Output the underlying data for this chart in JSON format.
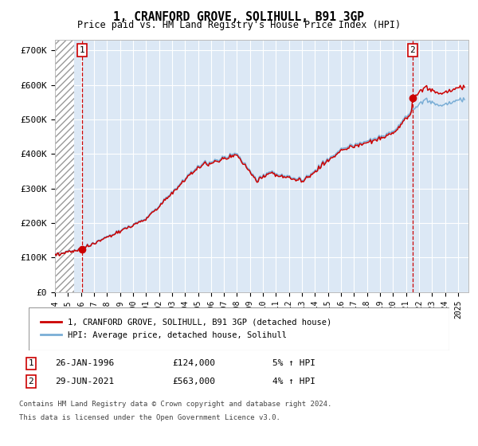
{
  "title": "1, CRANFORD GROVE, SOLIHULL, B91 3GP",
  "subtitle": "Price paid vs. HM Land Registry's House Price Index (HPI)",
  "ylabel_ticks": [
    "£0",
    "£100K",
    "£200K",
    "£300K",
    "£400K",
    "£500K",
    "£600K",
    "£700K"
  ],
  "ytick_values": [
    0,
    100000,
    200000,
    300000,
    400000,
    500000,
    600000,
    700000
  ],
  "ylim": [
    0,
    730000
  ],
  "xlim_start": 1994.0,
  "xlim_end": 2025.8,
  "hatch_end": 1995.5,
  "transaction1_year": 1996.07,
  "transaction1_price": 124000,
  "transaction2_year": 2021.49,
  "transaction2_price": 563000,
  "line_color_red": "#cc0000",
  "line_color_blue": "#7aaed6",
  "plot_bg": "#dce8f5",
  "grid_color": "#ffffff",
  "legend_label_red": "1, CRANFORD GROVE, SOLIHULL, B91 3GP (detached house)",
  "legend_label_blue": "HPI: Average price, detached house, Solihull",
  "footnote1": "Contains HM Land Registry data © Crown copyright and database right 2024.",
  "footnote2": "This data is licensed under the Open Government Licence v3.0.",
  "xtick_years": [
    1994,
    1995,
    1996,
    1997,
    1998,
    1999,
    2000,
    2001,
    2002,
    2003,
    2004,
    2005,
    2006,
    2007,
    2008,
    2009,
    2010,
    2011,
    2012,
    2013,
    2014,
    2015,
    2016,
    2017,
    2018,
    2019,
    2020,
    2021,
    2022,
    2023,
    2024,
    2025
  ],
  "tx1_label": "26-JAN-1996",
  "tx1_amount": "£124,000",
  "tx1_hpi": "5% ↑ HPI",
  "tx2_label": "29-JUN-2021",
  "tx2_amount": "£563,000",
  "tx2_hpi": "4% ↑ HPI"
}
